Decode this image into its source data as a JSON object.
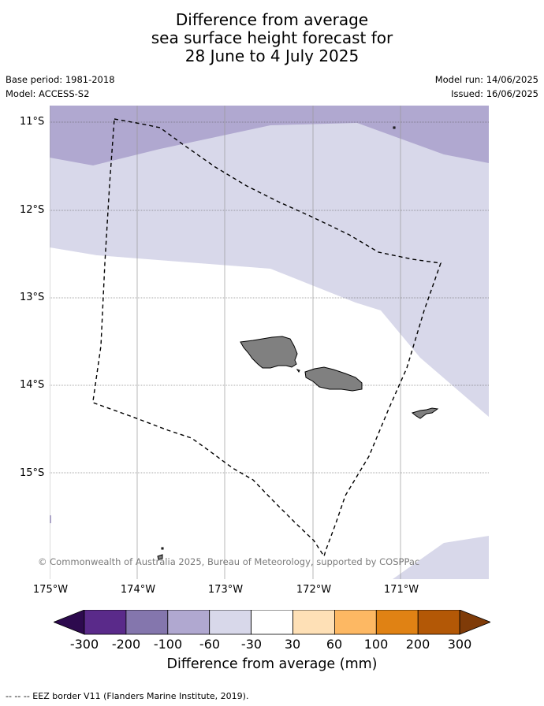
{
  "title": {
    "line1": "Difference from average",
    "line2": "sea surface height forecast for",
    "line3": "28 June to 4 July 2025"
  },
  "info": {
    "base_period": "Base period: 1981-2018",
    "model": "Model: ACCESS-S2",
    "model_run": "Model run: 14/06/2025",
    "issued": "Issued: 16/06/2025"
  },
  "map": {
    "latitude_labels": [
      "11°S",
      "12°S",
      "13°S",
      "14°S",
      "15°S"
    ],
    "longitude_labels": [
      "175°W",
      "174°W",
      "173°W",
      "172°W",
      "171°W"
    ],
    "copyright": "© Commonwealth of Australia 2025, Bureau of Meteorology, supported by COSPPac",
    "land_color": "#808080",
    "eez_border_style": "dashed black"
  },
  "colorbar": {
    "label": "Difference from average (mm)",
    "ticks": [
      "-300",
      "-200",
      "-100",
      "-60",
      "-30",
      "30",
      "60",
      "100",
      "200",
      "300"
    ],
    "colors": [
      "#2d0a4e",
      "#5a2a8a",
      "#8476ad",
      "#b0a8d0",
      "#d8d8ea",
      "#ffffff",
      "#fee0b6",
      "#fdb863",
      "#e08214",
      "#b35806",
      "#7f3b08"
    ]
  },
  "legend_note": "--  --  -- EEZ border V11 (Flanders Marine Institute, 2019)."
}
